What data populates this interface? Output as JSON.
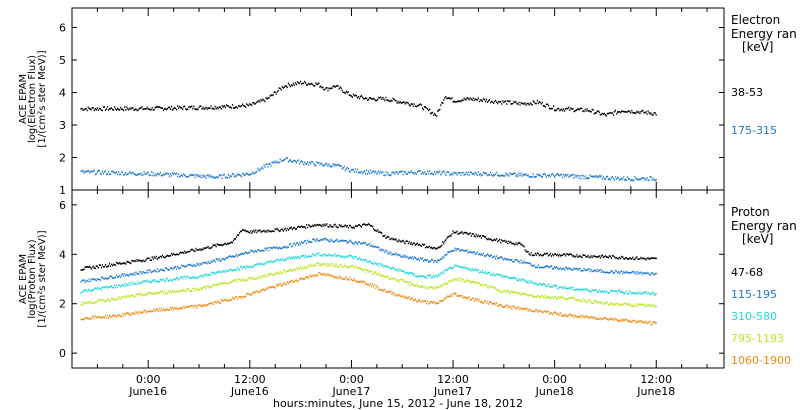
{
  "chart_data": [
    {
      "type": "scatter",
      "ylabel": [
        "ACE EPAM",
        "log(Electron Flux)",
        "[1/(cm²s ster MeV)]"
      ],
      "ylim": [
        1.0,
        6.6
      ],
      "yticks": [
        "1",
        "2",
        "3",
        "4",
        "5",
        "6"
      ],
      "legend_title": [
        "Electron",
        "Energy ran",
        "[keV]"
      ],
      "legend_position": "right",
      "series": [
        {
          "name": "38-53",
          "color": "#000000",
          "x": [
            -8,
            0,
            8,
            12,
            14,
            16,
            18,
            20,
            21,
            22,
            24,
            26,
            28,
            30,
            32,
            34,
            35,
            36,
            38,
            40,
            44,
            46,
            48,
            52,
            54,
            56,
            58,
            60
          ],
          "y": [
            3.5,
            3.5,
            3.55,
            3.6,
            3.8,
            4.2,
            4.3,
            4.25,
            4.1,
            4.2,
            3.9,
            3.8,
            3.8,
            3.7,
            3.6,
            3.3,
            3.9,
            3.75,
            3.8,
            3.75,
            3.65,
            3.7,
            3.5,
            3.45,
            3.3,
            3.45,
            3.4,
            3.35
          ]
        },
        {
          "name": "175-315",
          "color": "#1e78d2",
          "x": [
            -8,
            0,
            8,
            12,
            14,
            16,
            18,
            20,
            22,
            24,
            28,
            32,
            36,
            40,
            44,
            48,
            52,
            56,
            60
          ],
          "y": [
            1.55,
            1.5,
            1.4,
            1.5,
            1.75,
            1.95,
            1.85,
            1.8,
            1.75,
            1.6,
            1.5,
            1.55,
            1.5,
            1.5,
            1.45,
            1.45,
            1.4,
            1.35,
            1.35
          ]
        }
      ]
    },
    {
      "type": "scatter",
      "ylabel": [
        "ACE EPAM",
        "log(Proton Flux)",
        "[1/(cm²s ster MeV)]"
      ],
      "ylim": [
        -0.6,
        6.6
      ],
      "yticks": [
        "0",
        "2",
        "4",
        "6"
      ],
      "legend_title": [
        "Proton",
        "Energy ran",
        "[keV]"
      ],
      "legend_position": "right",
      "series": [
        {
          "name": "47-68",
          "color": "#000000",
          "x": [
            -8,
            -4,
            0,
            6,
            10,
            11,
            12,
            16,
            20,
            24,
            26,
            28,
            30,
            32,
            34,
            36,
            38,
            42,
            44,
            45,
            46,
            50,
            54,
            60
          ],
          "y": [
            3.4,
            3.6,
            3.8,
            4.2,
            4.5,
            5.0,
            4.9,
            5.0,
            5.2,
            5.1,
            5.2,
            4.7,
            4.5,
            4.4,
            4.2,
            4.9,
            4.8,
            4.5,
            4.4,
            4.0,
            4.0,
            3.95,
            3.9,
            3.8
          ]
        },
        {
          "name": "115-195",
          "color": "#1e78d2",
          "x": [
            -8,
            -4,
            0,
            6,
            10,
            12,
            16,
            20,
            24,
            26,
            28,
            30,
            32,
            34,
            36,
            38,
            42,
            44,
            46,
            50,
            54,
            60
          ],
          "y": [
            2.9,
            3.1,
            3.3,
            3.6,
            3.9,
            4.1,
            4.3,
            4.6,
            4.5,
            4.4,
            4.1,
            3.9,
            3.8,
            3.7,
            4.2,
            4.1,
            3.8,
            3.7,
            3.5,
            3.4,
            3.3,
            3.2
          ]
        },
        {
          "name": "310-580",
          "color": "#1fd9d9",
          "x": [
            -8,
            -4,
            0,
            6,
            10,
            12,
            16,
            20,
            24,
            26,
            28,
            30,
            32,
            34,
            36,
            38,
            42,
            46,
            50,
            54,
            60
          ],
          "y": [
            2.5,
            2.7,
            2.9,
            3.1,
            3.4,
            3.5,
            3.8,
            4.0,
            3.9,
            3.7,
            3.5,
            3.3,
            3.1,
            3.1,
            3.5,
            3.4,
            3.1,
            2.8,
            2.6,
            2.5,
            2.4
          ]
        },
        {
          "name": "795-1193",
          "color": "#b8e61e",
          "x": [
            -8,
            -4,
            0,
            6,
            10,
            12,
            16,
            20,
            24,
            26,
            28,
            30,
            32,
            34,
            36,
            38,
            42,
            46,
            50,
            54,
            60
          ],
          "y": [
            2.0,
            2.2,
            2.4,
            2.6,
            2.9,
            3.0,
            3.3,
            3.6,
            3.5,
            3.3,
            3.1,
            2.9,
            2.7,
            2.6,
            3.0,
            2.9,
            2.5,
            2.3,
            2.2,
            2.0,
            1.9
          ]
        },
        {
          "name": "1060-1900",
          "color": "#f08c14",
          "x": [
            -8,
            -4,
            0,
            6,
            10,
            12,
            16,
            20,
            24,
            26,
            28,
            30,
            32,
            34,
            36,
            38,
            42,
            46,
            50,
            54,
            60
          ],
          "y": [
            1.4,
            1.5,
            1.7,
            1.9,
            2.2,
            2.4,
            2.8,
            3.2,
            3.0,
            2.8,
            2.5,
            2.3,
            2.1,
            2.0,
            2.4,
            2.2,
            1.9,
            1.7,
            1.5,
            1.4,
            1.2
          ]
        }
      ]
    }
  ],
  "x_axis": {
    "range_hours": [
      -9,
      68
    ],
    "ticks": [
      {
        "hour": 0,
        "label": "0:00",
        "date": "June16"
      },
      {
        "hour": 12,
        "label": "12:00",
        "date": "June16"
      },
      {
        "hour": 24,
        "label": "0:00",
        "date": "June17"
      },
      {
        "hour": 36,
        "label": "12:00",
        "date": "June17"
      },
      {
        "hour": 48,
        "label": "0:00",
        "date": "June18"
      },
      {
        "hour": 60,
        "label": "12:00",
        "date": "June18"
      }
    ],
    "title": "hours:minutes, June 15, 2012 - June 18, 2012"
  }
}
